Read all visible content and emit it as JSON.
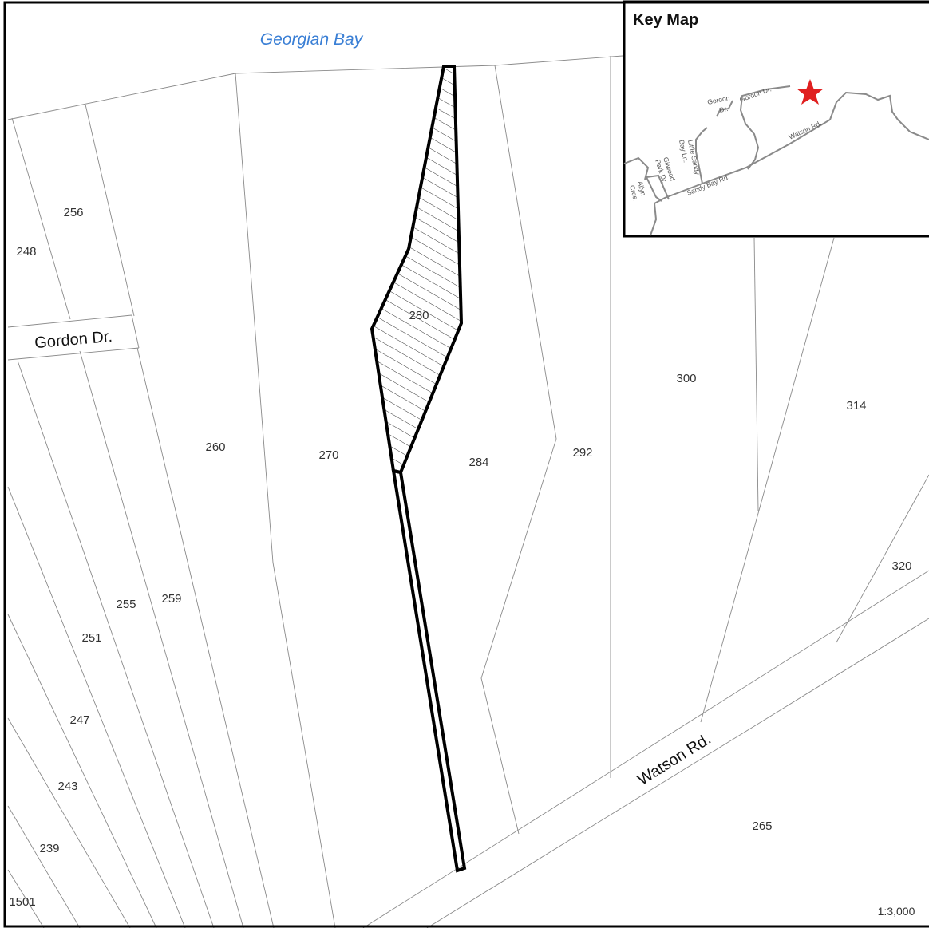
{
  "water_label": "Georgian Bay",
  "road_labels": {
    "gordon": "Gordon Dr.",
    "watson": "Watson Rd."
  },
  "lots": {
    "l248": "248",
    "l256": "256",
    "l260": "260",
    "l270": "270",
    "l280": "280",
    "l284": "284",
    "l292": "292",
    "l300": "300",
    "l314": "314",
    "l320": "320",
    "l265": "265",
    "l259": "259",
    "l255": "255",
    "l251": "251",
    "l247": "247",
    "l243": "243",
    "l239": "239",
    "l1501": "1501"
  },
  "key_map": {
    "title": "Key Map",
    "labels": {
      "gordon_dr_1": "Gordon",
      "gordon_dr_2": "Dr.",
      "gordon_dr_3": "Gordon Dr.",
      "watson_rd": "Watson Rd.",
      "little_sandy_1": "Little Sandy",
      "little_sandy_2": "Bay Ln.",
      "gilwood_1": "Gilwood",
      "gilwood_2": "Park Dr.",
      "allyn_1": "Allyn",
      "allyn_2": "Cres.",
      "sandy_bay": "Sandy Bay Rd."
    }
  },
  "scale": "1:3,000",
  "colors": {
    "water_text": "#3a7fd5",
    "subject_outline": "#000000",
    "star": "#e02020"
  }
}
